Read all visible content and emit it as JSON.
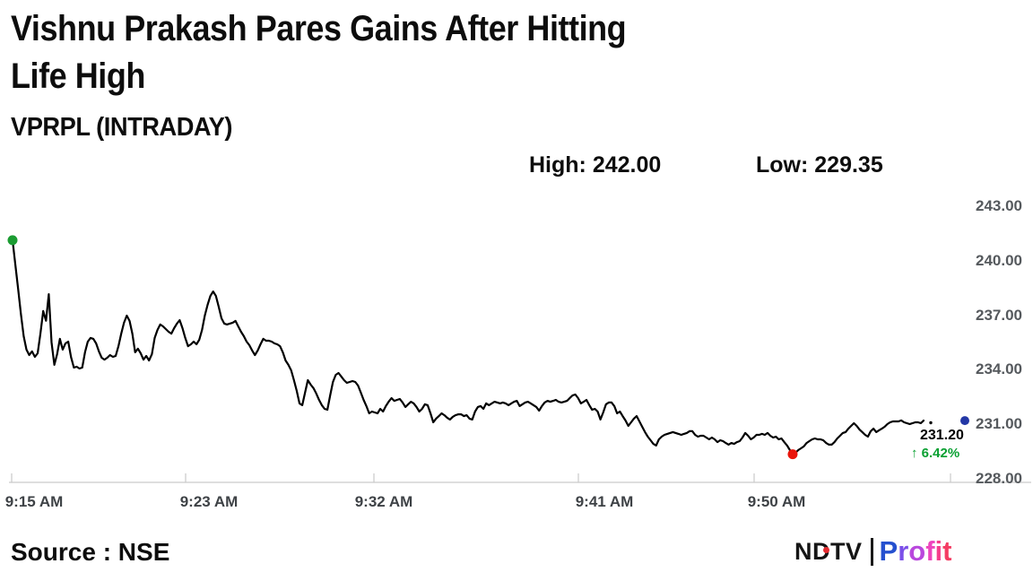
{
  "header": {
    "title_line1": "Vishnu Prakash Pares Gains After Hitting",
    "title_line2": "Life High",
    "symbol": "VPRPL (INTRADAY)",
    "high_text": "High: 242.00",
    "low_text": "Low: 229.35"
  },
  "annotations": {
    "last_price": "231.20",
    "up_arrow": "↑",
    "change_pct": "6.42%",
    "change_color": "#0aa032"
  },
  "footer": {
    "source": "Source : NSE",
    "logo_ndtv": "NDTV",
    "logo_dot_color": "#e52b30",
    "logo_profit_letters": [
      "P",
      "r",
      "o",
      "f",
      "i",
      "t"
    ],
    "logo_profit_colors": [
      "#2550cf",
      "#7b4fe8",
      "#b948dd",
      "#ee44bd",
      "#f53d8c",
      "#f43c63"
    ]
  },
  "chart_data": {
    "type": "line",
    "title": "VPRPL (INTRADAY)",
    "x_tick_labels": [
      "9:15 AM",
      "9:23 AM",
      "9:32 AM",
      "9:41 AM",
      "9:50 AM"
    ],
    "y_tick_labels": [
      "243.00",
      "240.00",
      "237.00",
      "234.00",
      "231.00",
      "228.00"
    ],
    "ylim": [
      228,
      243
    ],
    "grid": false,
    "legend": false,
    "line_color": "#000000",
    "axis_color": "#d4d4d4",
    "high": 242.0,
    "low": 229.35,
    "last": {
      "price": 231.2,
      "change_pct": 6.42,
      "direction": "up"
    },
    "markers": {
      "start_color": "#1b9c32",
      "low_color": "#ea150b",
      "last_color": "#2438a6"
    },
    "series": [
      {
        "name": "VPRPL",
        "values": [
          241.13,
          239.79,
          238.46,
          237.08,
          235.85,
          235.11,
          234.81,
          235.01,
          234.71,
          234.91,
          236.0,
          237.23,
          236.7,
          238.16,
          235.5,
          234.27,
          234.86,
          235.7,
          235.11,
          235.45,
          235.55,
          234.7,
          234.12,
          234.17,
          234.07,
          234.12,
          234.96,
          235.55,
          235.75,
          235.7,
          235.45,
          235.01,
          234.66,
          234.56,
          234.66,
          234.81,
          234.71,
          234.76,
          235.3,
          235.99,
          236.59,
          236.98,
          236.69,
          235.99,
          234.96,
          235.16,
          234.91,
          234.56,
          234.76,
          234.51,
          234.86,
          235.75,
          236.19,
          236.49,
          236.39,
          236.24,
          236.09,
          235.99,
          236.29,
          236.54,
          236.73,
          236.29,
          235.75,
          235.3,
          235.4,
          235.55,
          235.4,
          235.65,
          236.19,
          236.98,
          237.57,
          238.06,
          238.31,
          238.06,
          237.47,
          236.83,
          236.54,
          236.49,
          236.54,
          236.59,
          236.69,
          236.39,
          236.09,
          235.85,
          235.55,
          235.35,
          235.06,
          234.81,
          235.06,
          235.4,
          235.7,
          235.6,
          235.6,
          235.55,
          235.45,
          235.4,
          235.3,
          234.96,
          234.51,
          234.27,
          233.97,
          233.43,
          232.84,
          232.15,
          232.05,
          232.74,
          233.43,
          233.18,
          232.99,
          232.69,
          232.34,
          232.05,
          231.85,
          231.8,
          232.59,
          233.33,
          233.72,
          233.82,
          233.63,
          233.43,
          233.28,
          233.33,
          233.38,
          233.33,
          233.13,
          232.74,
          232.34,
          232.0,
          231.6,
          231.7,
          231.65,
          231.6,
          231.85,
          231.7,
          232.0,
          232.24,
          232.44,
          232.29,
          232.34,
          232.39,
          232.2,
          231.95,
          232.1,
          232.24,
          232.15,
          231.95,
          231.7,
          231.85,
          232.1,
          232.05,
          231.6,
          231.11,
          231.31,
          231.45,
          231.6,
          231.5,
          231.36,
          231.26,
          231.41,
          231.5,
          231.55,
          231.55,
          231.45,
          231.5,
          231.31,
          231.26,
          231.7,
          231.95,
          232.0,
          231.85,
          232.15,
          232.05,
          232.15,
          232.24,
          232.2,
          232.15,
          232.2,
          232.15,
          232.05,
          232.15,
          232.24,
          232.29,
          232.0,
          232.1,
          232.2,
          232.24,
          232.15,
          232.05,
          231.95,
          231.75,
          232.0,
          232.2,
          232.29,
          232.24,
          232.29,
          232.34,
          232.24,
          232.2,
          232.24,
          232.29,
          232.44,
          232.59,
          232.64,
          232.44,
          232.15,
          232.24,
          232.34,
          232.05,
          231.8,
          231.85,
          231.7,
          231.26,
          231.65,
          232.1,
          232.2,
          232.2,
          232.0,
          231.6,
          231.7,
          231.45,
          231.21,
          230.91,
          231.11,
          231.31,
          231.45,
          231.16,
          230.86,
          230.57,
          230.32,
          230.12,
          229.92,
          229.83,
          230.17,
          230.32,
          230.42,
          230.47,
          230.52,
          230.57,
          230.52,
          230.47,
          230.42,
          230.47,
          230.52,
          230.62,
          230.62,
          230.42,
          230.32,
          230.37,
          230.37,
          230.27,
          230.17,
          230.27,
          230.17,
          230.02,
          230.12,
          230.07,
          229.97,
          229.88,
          229.97,
          229.92,
          230.02,
          230.07,
          230.27,
          230.52,
          230.37,
          230.17,
          230.27,
          230.42,
          230.42,
          230.47,
          230.42,
          230.52,
          230.37,
          230.27,
          230.32,
          230.17,
          230.22,
          230.02,
          229.83,
          229.58,
          229.35,
          229.43,
          229.58,
          229.68,
          229.78,
          229.97,
          230.07,
          230.17,
          230.22,
          230.17,
          230.17,
          230.12,
          229.97,
          229.88,
          229.88,
          230.02,
          230.22,
          230.37,
          230.52,
          230.57,
          230.76,
          230.91,
          231.06,
          230.91,
          230.71,
          230.57,
          230.42,
          230.32,
          230.62,
          230.76,
          230.57,
          230.67,
          230.76,
          230.86,
          231.01,
          231.11,
          231.16,
          231.16,
          231.16,
          231.21,
          231.11,
          231.06,
          231.01,
          231.06,
          231.11,
          231.11,
          231.06,
          231.2
        ]
      }
    ]
  }
}
